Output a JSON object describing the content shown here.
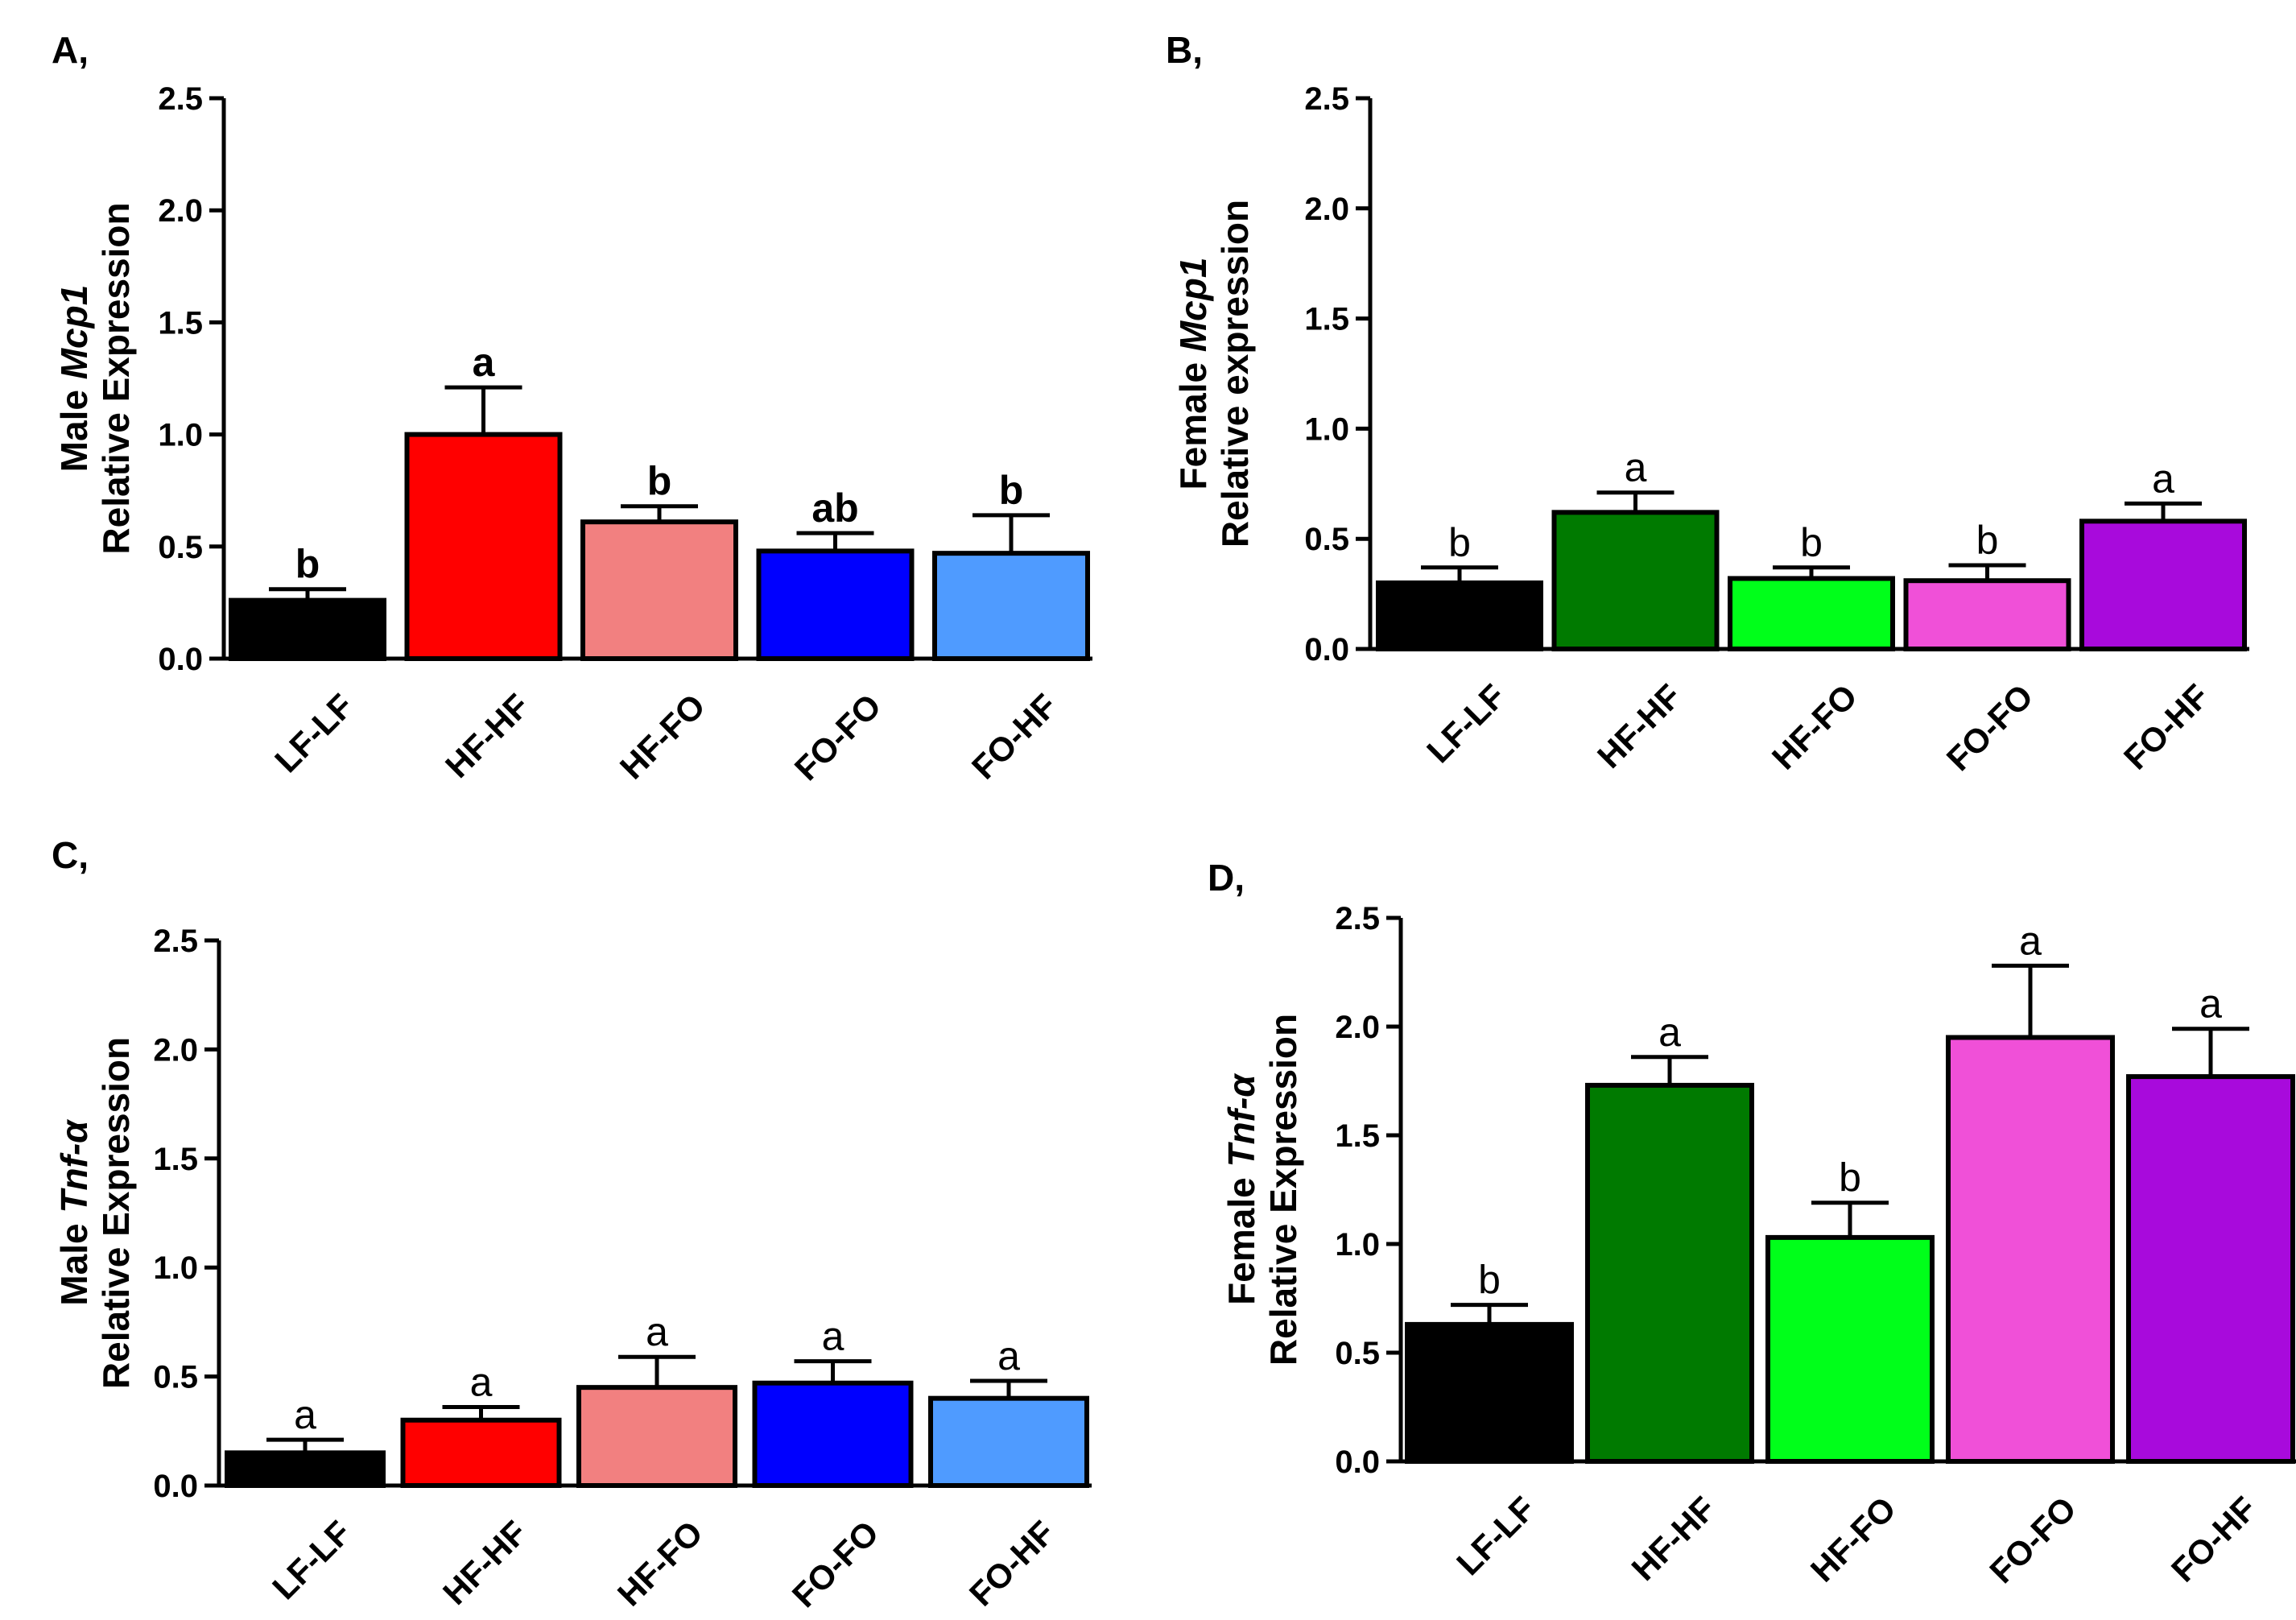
{
  "chart_data": [
    {
      "panel": "A,",
      "type": "bar",
      "categories": [
        "LF-LF",
        "HF-HF",
        "HF-FO",
        "FO-FO",
        "FO-HF"
      ],
      "values": [
        0.26,
        1.0,
        0.61,
        0.48,
        0.47
      ],
      "errors": [
        0.05,
        0.21,
        0.07,
        0.08,
        0.17
      ],
      "significance": [
        "b",
        "a",
        "b",
        "ab",
        "b"
      ],
      "significance_bold": true,
      "colors": [
        "#000000",
        "#ff0000",
        "#f28080",
        "#0000ff",
        "#4f9bff"
      ],
      "ylabel_prefix": "Male ",
      "ylabel_gene": "Mcp1",
      "ylabel_line2": "Relative Expression",
      "ylim": [
        0,
        2.5
      ],
      "yticks": [
        "0.0",
        "0.5",
        "1.0",
        "1.5",
        "2.0",
        "2.5"
      ]
    },
    {
      "panel": "B,",
      "type": "bar",
      "categories": [
        "LF-LF",
        "HF-HF",
        "HF-FO",
        "FO-FO",
        "FO-HF"
      ],
      "values": [
        0.3,
        0.62,
        0.32,
        0.31,
        0.58
      ],
      "errors": [
        0.07,
        0.09,
        0.05,
        0.07,
        0.08
      ],
      "significance": [
        "b",
        "a",
        "b",
        "b",
        "a"
      ],
      "significance_bold": false,
      "colors": [
        "#000000",
        "#007a00",
        "#00ff1a",
        "#f050d8",
        "#a80adc"
      ],
      "ylabel_prefix": "Female ",
      "ylabel_gene": "Mcp1",
      "ylabel_line2": "Relative expression",
      "ylim": [
        0,
        2.5
      ],
      "yticks": [
        "0.0",
        "0.5",
        "1.0",
        "1.5",
        "2.0",
        "2.5"
      ]
    },
    {
      "panel": "C,",
      "type": "bar",
      "categories": [
        "LF-LF",
        "HF-HF",
        "HF-FO",
        "FO-FO",
        "FO-HF"
      ],
      "values": [
        0.15,
        0.3,
        0.45,
        0.47,
        0.4
      ],
      "errors": [
        0.06,
        0.06,
        0.14,
        0.1,
        0.08
      ],
      "significance": [
        "a",
        "a",
        "a",
        "a",
        "a"
      ],
      "significance_bold": false,
      "colors": [
        "#000000",
        "#ff0000",
        "#f28080",
        "#0000ff",
        "#4f9bff"
      ],
      "ylabel_prefix": "Male ",
      "ylabel_gene": "Tnf-α",
      "ylabel_line2": "Relative Expression",
      "ylim": [
        0,
        2.5
      ],
      "yticks": [
        "0.0",
        "0.5",
        "1.0",
        "1.5",
        "2.0",
        "2.5"
      ]
    },
    {
      "panel": "D,",
      "type": "bar",
      "categories": [
        "LF-LF",
        "HF-HF",
        "HF-FO",
        "FO-FO",
        "FO-HF"
      ],
      "values": [
        0.63,
        1.73,
        1.03,
        1.95,
        1.77
      ],
      "errors": [
        0.09,
        0.13,
        0.16,
        0.33,
        0.22
      ],
      "significance": [
        "b",
        "a",
        "b",
        "a",
        "a"
      ],
      "significance_bold": false,
      "colors": [
        "#000000",
        "#007a00",
        "#00ff1a",
        "#f050d8",
        "#a80adc"
      ],
      "ylabel_prefix": "Female ",
      "ylabel_gene": "Tnf-α",
      "ylabel_line2": "Relative Expression",
      "ylim": [
        0,
        2.5
      ],
      "yticks": [
        "0.0",
        "0.5",
        "1.0",
        "1.5",
        "2.0",
        "2.5"
      ]
    }
  ]
}
